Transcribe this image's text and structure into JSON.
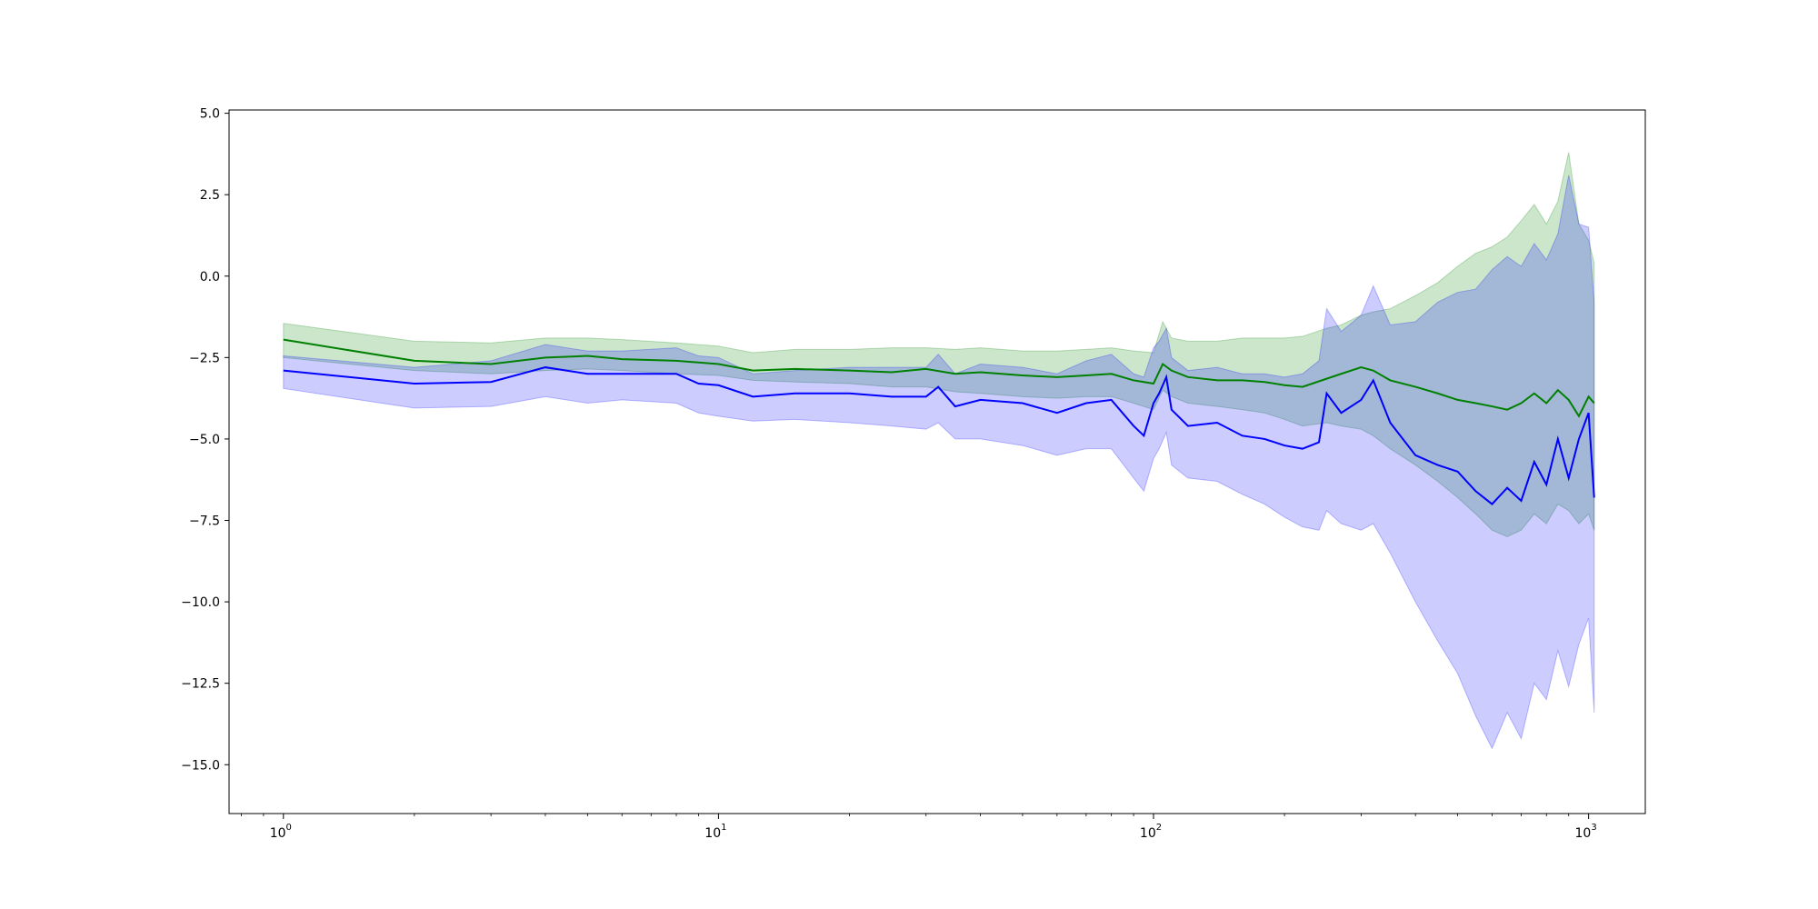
{
  "chart_data": {
    "type": "line",
    "title": "",
    "xlabel": "",
    "ylabel": "",
    "xscale": "log",
    "xlim": [
      0.75,
      1350
    ],
    "ylim": [
      -16.5,
      5.1
    ],
    "grid": false,
    "x_ticks": [
      1,
      10,
      100,
      1000
    ],
    "x_tick_labels": [
      {
        "base": "10",
        "exp": "0"
      },
      {
        "base": "10",
        "exp": "1"
      },
      {
        "base": "10",
        "exp": "2"
      },
      {
        "base": "10",
        "exp": "3"
      }
    ],
    "y_ticks": [
      5.0,
      2.5,
      0.0,
      -2.5,
      -5.0,
      -7.5,
      -10.0,
      -12.5,
      -15.0
    ],
    "y_tick_labels": [
      "5.0",
      "2.5",
      "0.0",
      "−2.5",
      "−5.0",
      "−7.5",
      "−10.0",
      "−12.5",
      "−15.0"
    ],
    "series": [
      {
        "color": "#008000",
        "band_color": "#008000",
        "x": [
          1,
          2,
          3,
          4,
          5,
          6,
          8,
          10,
          12,
          15,
          20,
          25,
          30,
          35,
          40,
          50,
          60,
          70,
          80,
          90,
          100,
          105,
          110,
          120,
          140,
          160,
          180,
          200,
          220,
          250,
          270,
          300,
          320,
          350,
          400,
          450,
          500,
          550,
          600,
          650,
          700,
          750,
          800,
          850,
          900,
          950,
          1000,
          1030
        ],
        "y": [
          -1.95,
          -2.6,
          -2.7,
          -2.5,
          -2.45,
          -2.55,
          -2.6,
          -2.7,
          -2.9,
          -2.85,
          -2.9,
          -2.95,
          -2.85,
          -3.0,
          -2.95,
          -3.05,
          -3.1,
          -3.05,
          -3.0,
          -3.2,
          -3.3,
          -2.7,
          -2.9,
          -3.1,
          -3.2,
          -3.2,
          -3.25,
          -3.35,
          -3.4,
          -3.15,
          -3.0,
          -2.8,
          -2.9,
          -3.2,
          -3.4,
          -3.6,
          -3.8,
          -3.9,
          -4.0,
          -4.1,
          -3.9,
          -3.6,
          -3.9,
          -3.5,
          -3.8,
          -4.3,
          -3.7,
          -3.9
        ],
        "y_low": [
          -2.5,
          -2.9,
          -3.0,
          -2.9,
          -2.85,
          -2.9,
          -3.0,
          -3.05,
          -3.2,
          -3.25,
          -3.3,
          -3.4,
          -3.4,
          -3.55,
          -3.6,
          -3.7,
          -3.75,
          -3.7,
          -3.7,
          -3.9,
          -4.1,
          -3.5,
          -3.7,
          -3.9,
          -4.0,
          -4.1,
          -4.2,
          -4.4,
          -4.6,
          -4.5,
          -4.6,
          -4.7,
          -4.9,
          -5.3,
          -5.8,
          -6.3,
          -6.8,
          -7.3,
          -7.8,
          -8.0,
          -7.8,
          -7.3,
          -7.6,
          -7.0,
          -7.2,
          -7.6,
          -7.3,
          -7.8
        ],
        "y_high": [
          -1.45,
          -2.0,
          -2.05,
          -1.9,
          -1.9,
          -1.95,
          -2.05,
          -2.15,
          -2.35,
          -2.25,
          -2.25,
          -2.2,
          -2.2,
          -2.25,
          -2.2,
          -2.3,
          -2.3,
          -2.25,
          -2.2,
          -2.3,
          -2.35,
          -1.4,
          -1.9,
          -2.0,
          -2.0,
          -1.9,
          -1.9,
          -1.9,
          -1.85,
          -1.6,
          -1.5,
          -1.2,
          -1.1,
          -1.0,
          -0.6,
          -0.2,
          0.3,
          0.7,
          0.9,
          1.2,
          1.7,
          2.2,
          1.6,
          2.3,
          3.8,
          1.6,
          1.1,
          0.4
        ]
      },
      {
        "color": "#0000ff",
        "band_color": "#0000ff",
        "x": [
          1,
          2,
          3,
          4,
          5,
          6,
          8,
          9,
          10,
          12,
          15,
          20,
          25,
          30,
          32,
          35,
          40,
          50,
          60,
          70,
          80,
          90,
          95,
          100,
          103,
          107,
          110,
          120,
          140,
          160,
          180,
          200,
          220,
          240,
          250,
          270,
          300,
          320,
          350,
          400,
          450,
          500,
          550,
          600,
          650,
          700,
          750,
          800,
          850,
          900,
          950,
          1000,
          1030
        ],
        "y": [
          -2.9,
          -3.3,
          -3.25,
          -2.8,
          -3.0,
          -3.0,
          -3.0,
          -3.3,
          -3.35,
          -3.7,
          -3.6,
          -3.6,
          -3.7,
          -3.7,
          -3.4,
          -4.0,
          -3.8,
          -3.9,
          -4.2,
          -3.9,
          -3.8,
          -4.6,
          -4.9,
          -3.9,
          -3.6,
          -3.1,
          -4.1,
          -4.6,
          -4.5,
          -4.9,
          -5.0,
          -5.2,
          -5.3,
          -5.1,
          -3.6,
          -4.2,
          -3.8,
          -3.2,
          -4.5,
          -5.5,
          -5.8,
          -6.0,
          -6.6,
          -7.0,
          -6.5,
          -6.9,
          -5.7,
          -6.4,
          -5.0,
          -6.2,
          -5.0,
          -4.2,
          -6.8
        ],
        "y_low": [
          -3.45,
          -4.05,
          -4.0,
          -3.7,
          -3.9,
          -3.8,
          -3.9,
          -4.2,
          -4.3,
          -4.45,
          -4.4,
          -4.5,
          -4.6,
          -4.7,
          -4.5,
          -5.0,
          -5.0,
          -5.2,
          -5.5,
          -5.3,
          -5.3,
          -6.2,
          -6.6,
          -5.6,
          -5.3,
          -4.8,
          -5.8,
          -6.2,
          -6.3,
          -6.7,
          -7.0,
          -7.4,
          -7.7,
          -7.8,
          -7.2,
          -7.6,
          -7.8,
          -7.6,
          -8.5,
          -10.0,
          -11.2,
          -12.2,
          -13.5,
          -14.5,
          -13.4,
          -14.2,
          -12.5,
          -13.0,
          -11.5,
          -12.6,
          -11.3,
          -10.5,
          -13.4
        ],
        "y_high": [
          -2.45,
          -2.8,
          -2.6,
          -2.1,
          -2.3,
          -2.3,
          -2.2,
          -2.45,
          -2.5,
          -3.0,
          -2.9,
          -2.8,
          -2.8,
          -2.8,
          -2.4,
          -3.0,
          -2.7,
          -2.8,
          -3.0,
          -2.6,
          -2.4,
          -3.0,
          -3.1,
          -2.2,
          -2.0,
          -1.6,
          -2.5,
          -2.9,
          -2.8,
          -3.0,
          -3.0,
          -3.1,
          -3.0,
          -2.6,
          -1.0,
          -1.7,
          -1.2,
          -0.3,
          -1.5,
          -1.4,
          -0.8,
          -0.5,
          -0.4,
          0.2,
          0.6,
          0.3,
          1.0,
          0.5,
          1.3,
          3.1,
          1.6,
          1.5,
          -0.8
        ]
      }
    ]
  }
}
